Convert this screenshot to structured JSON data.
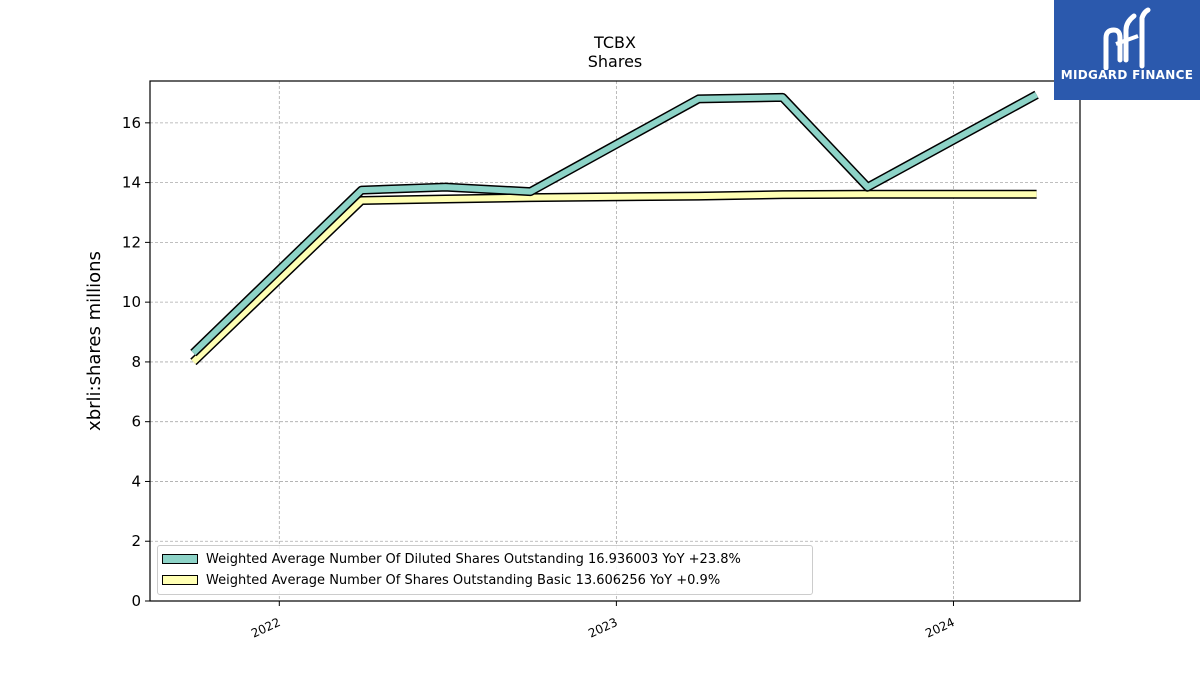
{
  "chart_data": {
    "type": "line",
    "title": "TCBX",
    "subtitle": "Shares",
    "ylabel": "xbrli:shares millions",
    "xlabel": "",
    "ylim": [
      0,
      17.4
    ],
    "xlim": [
      "2021-08-14",
      "2024-05-17"
    ],
    "yticks": [
      "0",
      "2",
      "4",
      "6",
      "8",
      "10",
      "12",
      "14",
      "16"
    ],
    "xticks": [
      {
        "label": "2022",
        "date": "2022-01-01"
      },
      {
        "label": "2023",
        "date": "2023-01-01"
      },
      {
        "label": "2024",
        "date": "2024-01-01"
      }
    ],
    "grid": true,
    "legend_position": "lower-left",
    "series": [
      {
        "name": "Weighted Average Number Of Diluted Shares Outstanding  16.936003 YoY +23.8%",
        "color": "#8dd3c7",
        "points": [
          {
            "x": "2021-09-30",
            "y": 8.3
          },
          {
            "x": "2022-03-31",
            "y": 13.75
          },
          {
            "x": "2022-06-30",
            "y": 13.85
          },
          {
            "x": "2022-09-30",
            "y": 13.7
          },
          {
            "x": "2023-03-31",
            "y": 16.8
          },
          {
            "x": "2023-06-30",
            "y": 16.85
          },
          {
            "x": "2023-09-30",
            "y": 13.85
          },
          {
            "x": "2024-03-31",
            "y": 16.94
          }
        ]
      },
      {
        "name": "Weighted Average Number Of Shares Outstanding Basic  13.606256 YoY +0.9%",
        "color": "#ffffb3",
        "points": [
          {
            "x": "2021-09-30",
            "y": 8.0
          },
          {
            "x": "2022-03-31",
            "y": 13.4
          },
          {
            "x": "2022-06-30",
            "y": 13.45
          },
          {
            "x": "2022-09-30",
            "y": 13.5
          },
          {
            "x": "2023-03-31",
            "y": 13.55
          },
          {
            "x": "2023-06-30",
            "y": 13.6
          },
          {
            "x": "2023-09-30",
            "y": 13.61
          },
          {
            "x": "2024-03-31",
            "y": 13.61
          }
        ]
      }
    ]
  },
  "logo": {
    "text": "MIDGARD FINANCE"
  }
}
